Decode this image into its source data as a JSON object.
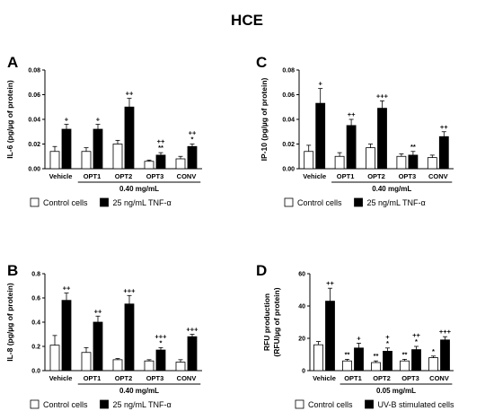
{
  "figure_title": "HCE",
  "colors": {
    "control": "#ffffff",
    "treated": "#000000",
    "axis": "#000000"
  },
  "chart_data": [
    {
      "panel": "A",
      "type": "bar",
      "ylabel": "IL-6 (pg/µg of protein)",
      "ylim": [
        0,
        0.08
      ],
      "yticks": [
        "0.00",
        "0.02",
        "0.04",
        "0.06",
        "0.08"
      ],
      "categories": [
        "Vehicle",
        "OPT1",
        "OPT2",
        "OPT3",
        "CONV"
      ],
      "group_label": "0.40 mg/mL",
      "series": [
        {
          "name": "Control cells",
          "values": [
            0.014,
            0.014,
            0.02,
            0.006,
            0.008
          ],
          "errors": [
            0.004,
            0.003,
            0.003,
            0.001,
            0.002
          ]
        },
        {
          "name": "25 ng/mL TNF-α",
          "values": [
            0.032,
            0.032,
            0.05,
            0.011,
            0.018
          ],
          "errors": [
            0.004,
            0.004,
            0.007,
            0.002,
            0.002
          ]
        }
      ],
      "annotations": [
        {
          "category": 0,
          "series": 1,
          "text": [
            "+"
          ]
        },
        {
          "category": 1,
          "series": 1,
          "text": [
            "+"
          ]
        },
        {
          "category": 2,
          "series": 1,
          "text": [
            "++"
          ]
        },
        {
          "category": 3,
          "series": 1,
          "text": [
            "++",
            "**"
          ]
        },
        {
          "category": 4,
          "series": 1,
          "text": [
            "++",
            "*"
          ]
        }
      ]
    },
    {
      "panel": "C",
      "type": "bar",
      "ylabel": "IP-10 (pg/µg of protein)",
      "ylim": [
        0,
        0.08
      ],
      "yticks": [
        "0.00",
        "0.02",
        "0.04",
        "0.06",
        "0.08"
      ],
      "categories": [
        "Vehicle",
        "OPT1",
        "OPT2",
        "OPT3",
        "CONV"
      ],
      "group_label": "0.40 mg/mL",
      "series": [
        {
          "name": "Control cells",
          "values": [
            0.014,
            0.01,
            0.017,
            0.01,
            0.009
          ],
          "errors": [
            0.005,
            0.003,
            0.003,
            0.002,
            0.002
          ]
        },
        {
          "name": "25 ng/mL TNF-α",
          "values": [
            0.053,
            0.035,
            0.049,
            0.011,
            0.026
          ],
          "errors": [
            0.012,
            0.005,
            0.006,
            0.003,
            0.004
          ]
        }
      ],
      "annotations": [
        {
          "category": 0,
          "series": 1,
          "text": [
            "+"
          ]
        },
        {
          "category": 1,
          "series": 1,
          "text": [
            "++"
          ]
        },
        {
          "category": 2,
          "series": 1,
          "text": [
            "+++"
          ]
        },
        {
          "category": 3,
          "series": 1,
          "text": [
            "**"
          ]
        },
        {
          "category": 4,
          "series": 1,
          "text": [
            "++"
          ]
        }
      ]
    },
    {
      "panel": "B",
      "type": "bar",
      "ylabel": "IL-8 (pg/µg of protein)",
      "ylim": [
        0,
        0.8
      ],
      "yticks": [
        "0.0",
        "0.2",
        "0.4",
        "0.6",
        "0.8"
      ],
      "categories": [
        "Vehicle",
        "OPT1",
        "OPT2",
        "OPT3",
        "CONV"
      ],
      "group_label": "0.40 mg/mL",
      "series": [
        {
          "name": "Control cells",
          "values": [
            0.21,
            0.15,
            0.09,
            0.08,
            0.07
          ],
          "errors": [
            0.08,
            0.04,
            0.01,
            0.01,
            0.02
          ]
        },
        {
          "name": "25 ng/mL TNF-α",
          "values": [
            0.58,
            0.4,
            0.55,
            0.17,
            0.28
          ],
          "errors": [
            0.06,
            0.05,
            0.07,
            0.02,
            0.02
          ]
        }
      ],
      "annotations": [
        {
          "category": 0,
          "series": 1,
          "text": [
            "++"
          ]
        },
        {
          "category": 1,
          "series": 1,
          "text": [
            "++"
          ]
        },
        {
          "category": 2,
          "series": 1,
          "text": [
            "+++"
          ]
        },
        {
          "category": 3,
          "series": 1,
          "text": [
            "+++",
            "*"
          ]
        },
        {
          "category": 4,
          "series": 1,
          "text": [
            "+++"
          ]
        }
      ]
    },
    {
      "panel": "D",
      "type": "bar",
      "ylabel": "RFU production (RFU/µg of protein)",
      "ylim": [
        0,
        60
      ],
      "yticks": [
        "0",
        "20",
        "40",
        "60"
      ],
      "categories": [
        "Vehicle",
        "OPT1",
        "OPT2",
        "OPT3",
        "CONV"
      ],
      "group_label": "0.05 mg/mL",
      "series": [
        {
          "name": "Control cells",
          "values": [
            16,
            6,
            5,
            6,
            8
          ],
          "errors": [
            2,
            1,
            1,
            1,
            1
          ]
        },
        {
          "name": "UV-B stimulated cells",
          "values": [
            43,
            14,
            12,
            13,
            19
          ],
          "errors": [
            8,
            3,
            2,
            2,
            2
          ]
        }
      ],
      "annotations": [
        {
          "category": 0,
          "series": 1,
          "text": [
            "++"
          ]
        },
        {
          "category": 1,
          "series": 0,
          "text": [
            "**"
          ]
        },
        {
          "category": 1,
          "series": 1,
          "text": [
            "+"
          ]
        },
        {
          "category": 2,
          "series": 0,
          "text": [
            "**"
          ]
        },
        {
          "category": 2,
          "series": 1,
          "text": [
            "+",
            "*"
          ]
        },
        {
          "category": 3,
          "series": 0,
          "text": [
            "**"
          ]
        },
        {
          "category": 3,
          "series": 1,
          "text": [
            "++",
            "*"
          ]
        },
        {
          "category": 4,
          "series": 0,
          "text": [
            "*"
          ]
        },
        {
          "category": 4,
          "series": 1,
          "text": [
            "+++"
          ]
        }
      ]
    }
  ]
}
